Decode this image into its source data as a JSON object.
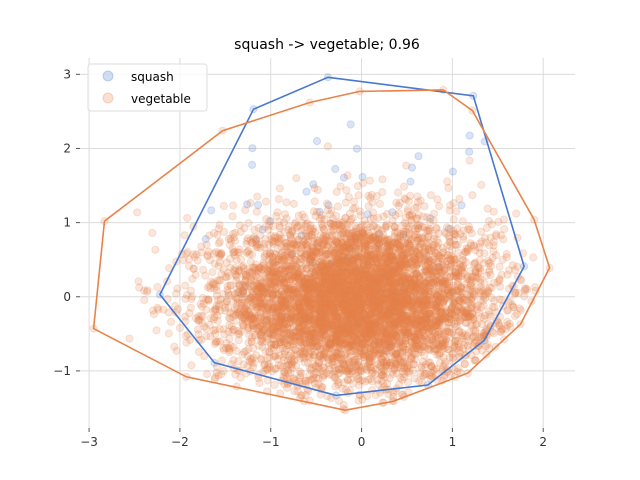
{
  "chart_data": {
    "type": "scatter",
    "title": "squash -> vegetable; 0.96",
    "xlabel": "",
    "ylabel": "",
    "xlim": [
      -3.1,
      2.35
    ],
    "ylim": [
      -1.77,
      3.22
    ],
    "xticks": [
      -3,
      -2,
      -1,
      0,
      1,
      2
    ],
    "xtick_labels": [
      "−3",
      "−2",
      "−1",
      "0",
      "1",
      "2"
    ],
    "yticks": [
      -1,
      0,
      1,
      2,
      3
    ],
    "ytick_labels": [
      "−1",
      "0",
      "1",
      "2",
      "3"
    ],
    "grid": true,
    "legend_position": "top-left",
    "series": [
      {
        "name": "squash",
        "color": "#4878cf",
        "point_opacity": 0.2,
        "hull": [
          [
            -0.37,
            2.96
          ],
          [
            1.23,
            2.71
          ],
          [
            1.79,
            0.41
          ],
          [
            1.35,
            -0.59
          ],
          [
            0.73,
            -1.19
          ],
          [
            -0.28,
            -1.33
          ],
          [
            -1.62,
            -0.89
          ],
          [
            -2.22,
            0.03
          ],
          [
            -1.19,
            2.53
          ]
        ],
        "points_summary": {
          "count_estimate": 60,
          "center": [
            0.0,
            0.8
          ],
          "spread": [
            0.9,
            0.9
          ]
        }
      },
      {
        "name": "vegetable",
        "color": "#e8834a",
        "point_opacity": 0.2,
        "hull": [
          [
            -0.02,
            2.77
          ],
          [
            0.9,
            2.79
          ],
          [
            1.22,
            2.51
          ],
          [
            1.9,
            1.04
          ],
          [
            2.07,
            0.39
          ],
          [
            1.75,
            -0.37
          ],
          [
            1.17,
            -1.03
          ],
          [
            0.35,
            -1.41
          ],
          [
            -0.18,
            -1.53
          ],
          [
            -1.93,
            -1.08
          ],
          [
            -2.95,
            -0.43
          ],
          [
            -2.83,
            1.02
          ],
          [
            -1.53,
            2.24
          ],
          [
            -0.57,
            2.62
          ]
        ],
        "points_summary": {
          "count_estimate": 6000,
          "center": [
            -0.05,
            -0.05
          ],
          "spread": [
            0.75,
            0.55
          ]
        }
      }
    ]
  }
}
